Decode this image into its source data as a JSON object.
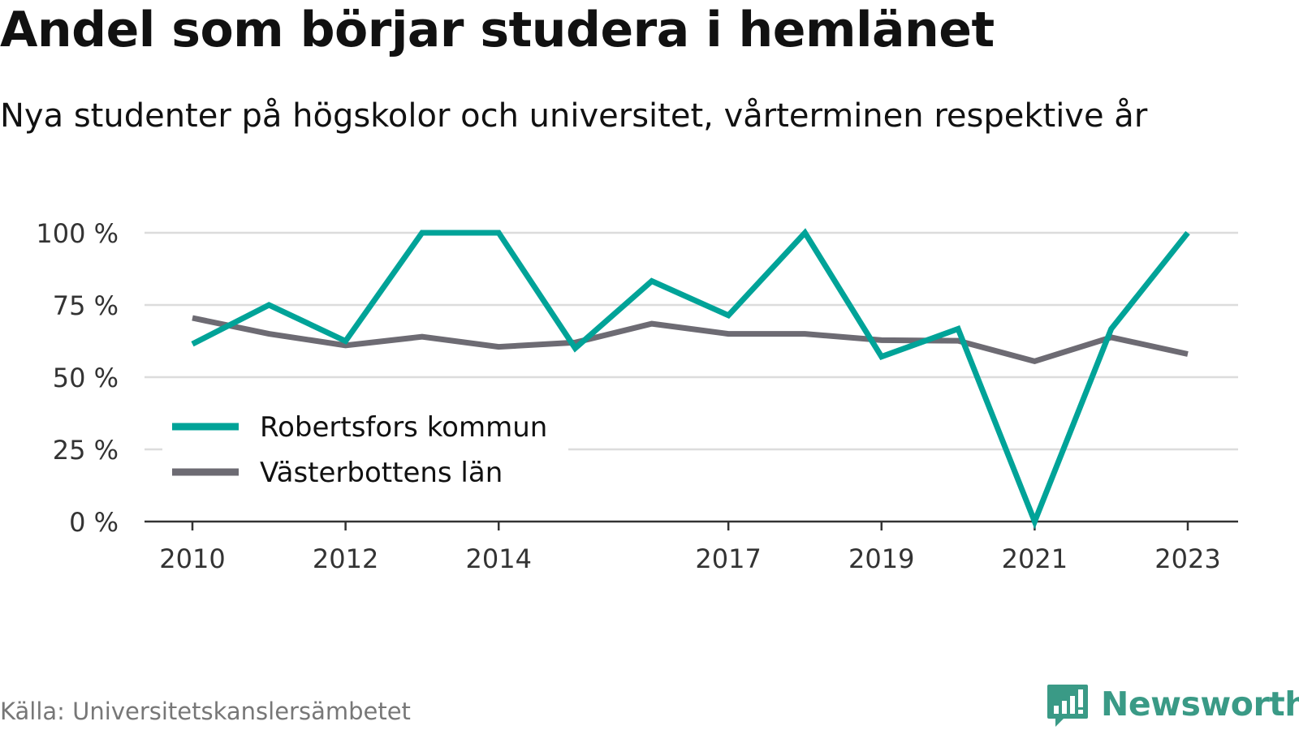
{
  "title": "Andel som börjar studera i hemlänet",
  "subtitle": "Nya studenter på högskolor och universitet, vårterminen respektive år",
  "source": "Källa: Universitetskanslersämbetet",
  "brand": {
    "name": "Newsworthy",
    "color": "#3a9a86",
    "icon": "bar-chart-bubble-icon"
  },
  "chart_data": {
    "type": "line",
    "title": "Andel som börjar studera i hemlänet",
    "subtitle": "Nya studenter på högskolor och universitet, vårterminen respektive år",
    "xlabel": "",
    "ylabel": "",
    "x": [
      2010,
      2011,
      2012,
      2013,
      2014,
      2015,
      2016,
      2017,
      2018,
      2019,
      2020,
      2021,
      2022,
      2023
    ],
    "x_tick_labels": [
      "2010",
      "2012",
      "2014",
      "2017",
      "2019",
      "2021",
      "2023"
    ],
    "ylim": [
      0,
      100
    ],
    "y_ticks": [
      0,
      25,
      50,
      75,
      100
    ],
    "y_tick_labels": [
      "0 %",
      "25 %",
      "50 %",
      "75 %",
      "100 %"
    ],
    "grid": true,
    "legend_position": "lower-left",
    "series": [
      {
        "name": "Robertsfors kommun",
        "color": "#00a398",
        "values": [
          61.5,
          75,
          62.5,
          100,
          100,
          60,
          83.3,
          71.4,
          100,
          57.1,
          66.7,
          0,
          66.7,
          100
        ]
      },
      {
        "name": "Västerbottens län",
        "color": "#6d6b73",
        "values": [
          70.5,
          65,
          61,
          64,
          60.5,
          62,
          68.5,
          65,
          65,
          62.8,
          62.6,
          55.5,
          63.8,
          58
        ]
      }
    ]
  }
}
